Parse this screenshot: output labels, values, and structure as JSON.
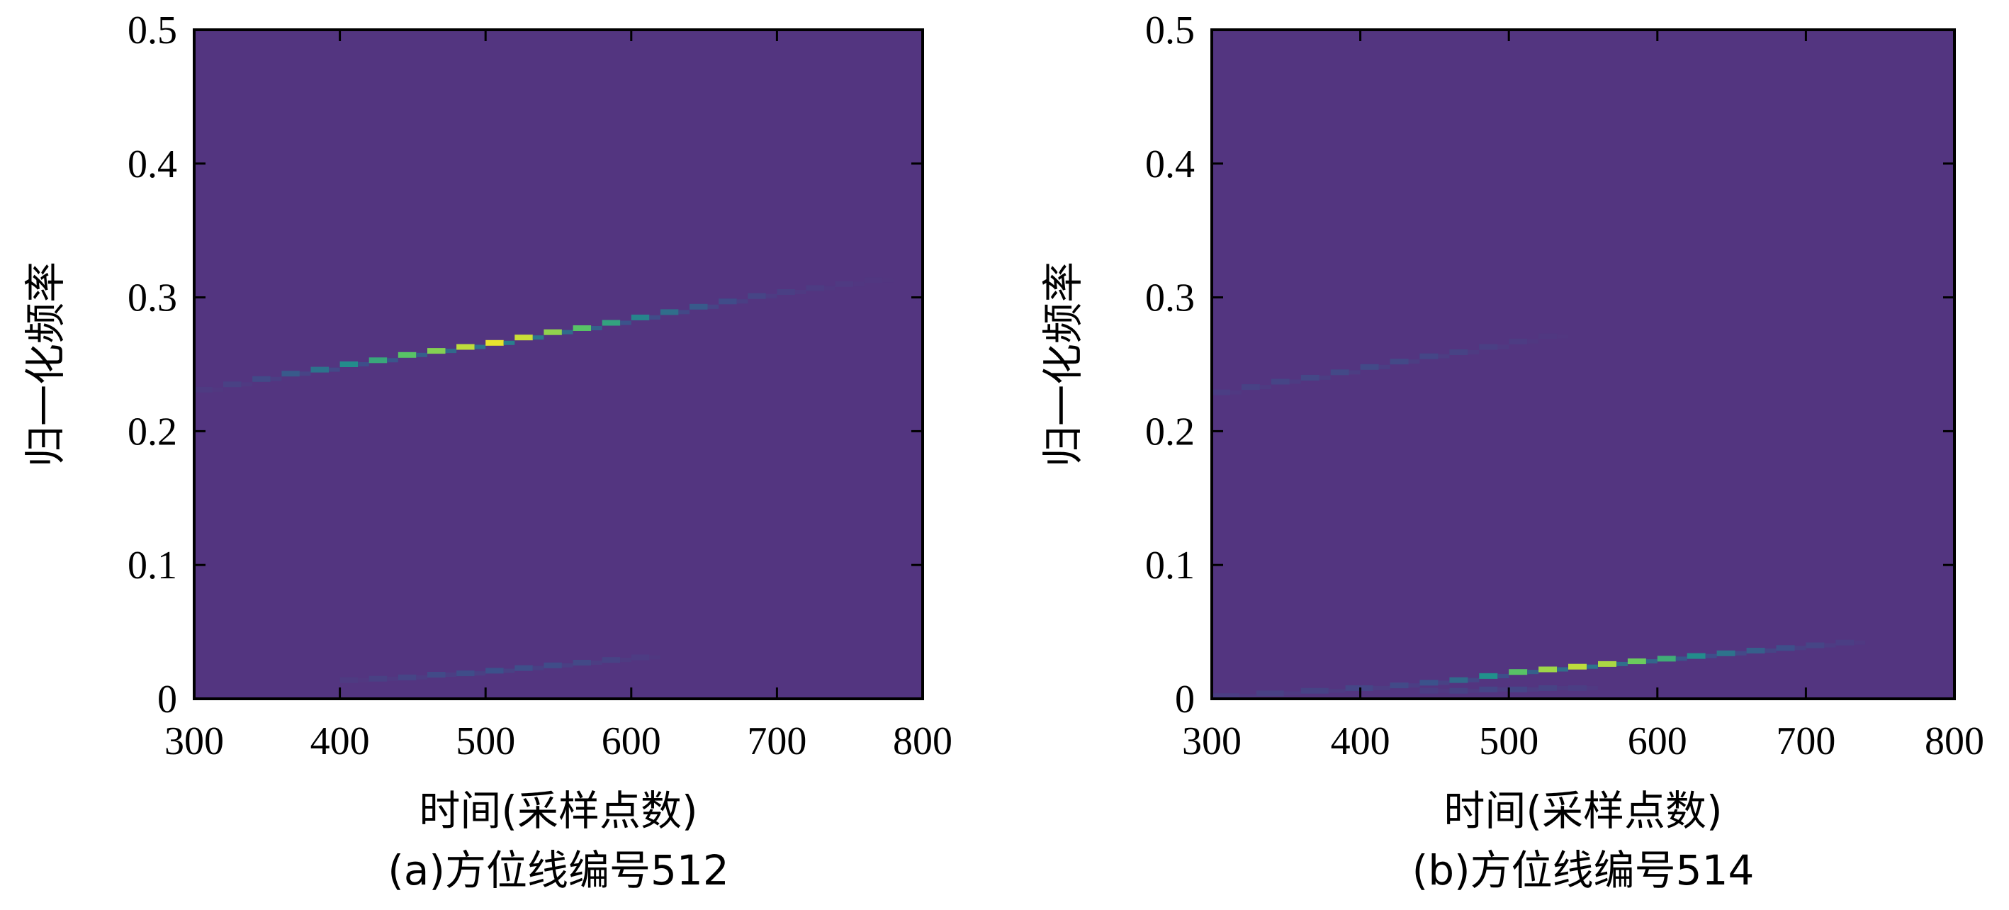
{
  "chart_data": [
    {
      "type": "heatmap",
      "caption": "(a)方位线编号512",
      "xlabel": "时间(采样点数)",
      "ylabel": "归一化频率",
      "xlim": [
        300,
        800
      ],
      "ylim": [
        0,
        0.5
      ],
      "xticks": [
        "300",
        "400",
        "500",
        "600",
        "700",
        "800"
      ],
      "yticks": [
        "0",
        "0.1",
        "0.2",
        "0.3",
        "0.4",
        "0.5"
      ],
      "background_color": "#533580",
      "grid": false,
      "ridges": [
        {
          "x": [
            300,
            320,
            340,
            360,
            380,
            400,
            420,
            440,
            460,
            480,
            500,
            520,
            540,
            560,
            580,
            600,
            620,
            640,
            660,
            680,
            700,
            720,
            740,
            760
          ],
          "y": [
            0.231,
            0.235,
            0.239,
            0.243,
            0.246,
            0.25,
            0.253,
            0.257,
            0.26,
            0.263,
            0.266,
            0.27,
            0.274,
            0.277,
            0.281,
            0.285,
            0.289,
            0.293,
            0.297,
            0.301,
            0.304,
            0.307,
            0.31,
            0.313
          ],
          "intensity": [
            0.05,
            0.1,
            0.18,
            0.28,
            0.38,
            0.48,
            0.58,
            0.68,
            0.76,
            0.85,
            0.95,
            0.88,
            0.78,
            0.68,
            0.56,
            0.45,
            0.36,
            0.28,
            0.2,
            0.14,
            0.09,
            0.06,
            0.04,
            0.02
          ]
        },
        {
          "x": [
            400,
            420,
            440,
            460,
            480,
            500,
            520,
            540,
            560,
            580,
            600
          ],
          "y": [
            0.014,
            0.015,
            0.016,
            0.018,
            0.019,
            0.021,
            0.023,
            0.025,
            0.027,
            0.029,
            0.031
          ],
          "intensity": [
            0.05,
            0.1,
            0.14,
            0.18,
            0.21,
            0.24,
            0.22,
            0.2,
            0.17,
            0.12,
            0.06
          ]
        }
      ]
    },
    {
      "type": "heatmap",
      "caption": "(b)方位线编号514",
      "xlabel": "时间(采样点数)",
      "ylabel": "归一化频率",
      "xlim": [
        300,
        800
      ],
      "ylim": [
        0,
        0.5
      ],
      "xticks": [
        "300",
        "400",
        "500",
        "600",
        "700",
        "800"
      ],
      "yticks": [
        "0",
        "0.1",
        "0.2",
        "0.3",
        "0.4",
        "0.5"
      ],
      "background_color": "#533580",
      "grid": false,
      "ridges": [
        {
          "x": [
            300,
            320,
            340,
            360,
            380,
            400,
            420,
            440,
            460,
            480,
            500,
            520
          ],
          "y": [
            0.229,
            0.233,
            0.237,
            0.24,
            0.244,
            0.248,
            0.252,
            0.256,
            0.259,
            0.263,
            0.267,
            0.271
          ],
          "intensity": [
            0.08,
            0.11,
            0.14,
            0.16,
            0.17,
            0.18,
            0.17,
            0.15,
            0.12,
            0.09,
            0.06,
            0.03
          ]
        },
        {
          "x": [
            300,
            330,
            360,
            390,
            420,
            440,
            460,
            480,
            500,
            520,
            540,
            560,
            580,
            600,
            620,
            640,
            660,
            680,
            700,
            720
          ],
          "y": [
            0.002,
            0.004,
            0.006,
            0.008,
            0.01,
            0.012,
            0.014,
            0.017,
            0.02,
            0.022,
            0.024,
            0.026,
            0.028,
            0.03,
            0.032,
            0.034,
            0.036,
            0.038,
            0.04,
            0.042
          ],
          "intensity": [
            0.08,
            0.1,
            0.12,
            0.15,
            0.18,
            0.25,
            0.35,
            0.5,
            0.68,
            0.8,
            0.85,
            0.82,
            0.72,
            0.6,
            0.48,
            0.38,
            0.3,
            0.22,
            0.14,
            0.08
          ]
        },
        {
          "x": [
            440,
            460,
            480,
            500,
            520,
            540
          ],
          "y": [
            0.006,
            0.006,
            0.007,
            0.007,
            0.008,
            0.008
          ],
          "intensity": [
            0.08,
            0.12,
            0.15,
            0.15,
            0.12,
            0.08
          ]
        }
      ]
    }
  ]
}
